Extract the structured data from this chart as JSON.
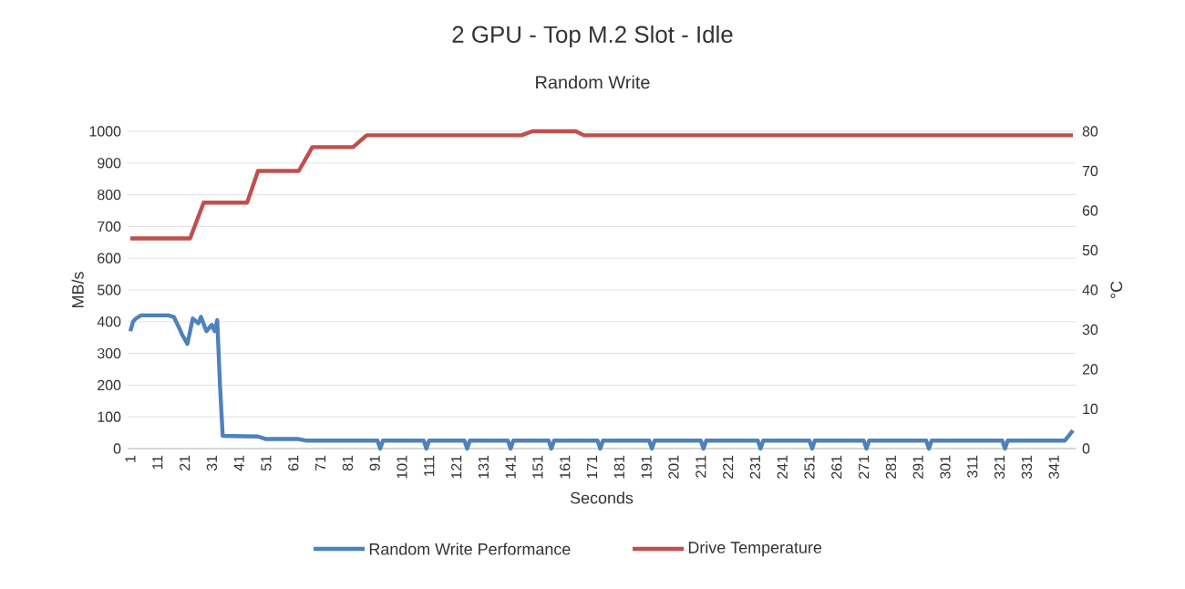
{
  "chart_data": {
    "type": "line",
    "title": "2 GPU - Top M.2 Slot - Idle",
    "subtitle": "Random Write",
    "xlabel": "Seconds",
    "ylabel": "MB/s",
    "y2label": "°C",
    "xlim": [
      0,
      349
    ],
    "xticks": [
      1,
      11,
      21,
      31,
      41,
      51,
      61,
      71,
      81,
      91,
      101,
      111,
      121,
      131,
      141,
      151,
      161,
      171,
      181,
      191,
      201,
      211,
      221,
      231,
      241,
      251,
      261,
      271,
      281,
      291,
      301,
      311,
      321,
      331,
      341
    ],
    "ylim": [
      0,
      1000
    ],
    "yticks": [
      0,
      100,
      200,
      300,
      400,
      500,
      600,
      700,
      800,
      900,
      1000
    ],
    "y2lim": [
      0,
      80
    ],
    "y2ticks": [
      0,
      10,
      20,
      30,
      40,
      50,
      60,
      70,
      80
    ],
    "grid": "y",
    "legend": "bottom",
    "marker": "none",
    "line_style": "solid",
    "series": [
      {
        "name": "Random Write Performance",
        "color": "#4f81bd",
        "x": [
          1,
          2,
          3,
          5,
          10,
          15,
          17,
          19,
          20,
          22,
          24,
          26,
          27,
          29,
          31,
          32,
          33,
          34,
          35,
          48,
          51,
          63,
          66,
          92,
          93,
          94,
          109,
          110,
          111,
          124,
          125,
          126,
          140,
          141,
          142,
          155,
          156,
          157,
          173,
          174,
          175,
          192,
          193,
          194,
          211,
          212,
          213,
          232,
          233,
          234,
          251,
          252,
          253,
          271,
          272,
          273,
          294,
          295,
          296,
          322,
          323,
          324,
          345,
          348
        ],
        "values": [
          370,
          400,
          410,
          420,
          420,
          420,
          415,
          380,
          360,
          330,
          410,
          395,
          415,
          370,
          390,
          370,
          405,
          200,
          40,
          38,
          30,
          30,
          25,
          25,
          0,
          25,
          25,
          0,
          25,
          25,
          0,
          25,
          25,
          0,
          25,
          25,
          0,
          25,
          25,
          0,
          25,
          25,
          0,
          25,
          25,
          0,
          25,
          25,
          0,
          25,
          25,
          0,
          25,
          25,
          0,
          25,
          25,
          0,
          25,
          25,
          0,
          25,
          25,
          57
        ]
      },
      {
        "name": "Drive Temperature",
        "color": "#c0504d",
        "axis": "y2",
        "x": [
          1,
          23,
          28,
          44,
          48,
          63,
          68,
          83,
          88,
          145,
          149,
          165,
          168,
          348
        ],
        "values": [
          53,
          53,
          62,
          62,
          70,
          70,
          76,
          76,
          79,
          79,
          80,
          80,
          79,
          79
        ]
      }
    ]
  }
}
